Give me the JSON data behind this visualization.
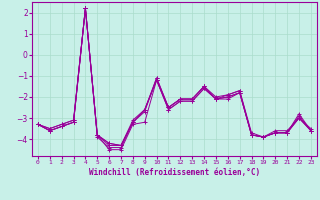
{
  "xlabel": "Windchill (Refroidissement éolien,°C)",
  "x": [
    0,
    1,
    2,
    3,
    4,
    5,
    6,
    7,
    8,
    9,
    10,
    11,
    12,
    13,
    14,
    15,
    16,
    17,
    18,
    19,
    20,
    21,
    22,
    23
  ],
  "lines": [
    [
      -3.3,
      -3.6,
      -3.4,
      -3.2,
      2.2,
      -3.8,
      -4.5,
      -4.5,
      -3.3,
      -3.2,
      -1.2,
      -2.6,
      -2.2,
      -2.2,
      -1.6,
      -2.1,
      -2.1,
      -1.8,
      -3.8,
      -3.9,
      -3.7,
      -3.7,
      -2.8,
      -3.6
    ],
    [
      -3.3,
      -3.6,
      -3.4,
      -3.2,
      2.2,
      -3.8,
      -4.3,
      -4.3,
      -3.2,
      -2.6,
      -1.2,
      -2.6,
      -2.2,
      -2.2,
      -1.6,
      -2.1,
      -2.0,
      -1.8,
      -3.8,
      -3.9,
      -3.7,
      -3.7,
      -3.0,
      -3.6
    ],
    [
      -3.3,
      -3.5,
      -3.3,
      -3.1,
      2.2,
      -3.8,
      -4.2,
      -4.3,
      -3.2,
      -2.6,
      -1.2,
      -2.5,
      -2.1,
      -2.1,
      -1.5,
      -2.1,
      -1.9,
      -1.7,
      -3.8,
      -3.9,
      -3.7,
      -3.7,
      -3.0,
      -3.6
    ],
    [
      -3.3,
      -3.5,
      -3.3,
      -3.1,
      2.2,
      -3.8,
      -4.2,
      -4.3,
      -3.1,
      -2.6,
      -1.1,
      -2.5,
      -2.1,
      -2.1,
      -1.5,
      -2.0,
      -1.9,
      -1.7,
      -3.7,
      -3.9,
      -3.6,
      -3.6,
      -3.0,
      -3.5
    ],
    [
      -3.3,
      -3.6,
      -3.4,
      -3.2,
      2.2,
      -3.9,
      -4.4,
      -4.4,
      -3.2,
      -2.7,
      -1.1,
      -2.5,
      -2.1,
      -2.1,
      -1.5,
      -2.1,
      -2.0,
      -1.8,
      -3.8,
      -3.9,
      -3.7,
      -3.7,
      -2.9,
      -3.6
    ]
  ],
  "line_color": "#990099",
  "marker": "+",
  "markersize": 3,
  "linewidth": 0.7,
  "markeredgewidth": 0.7,
  "background_color": "#c8f0e8",
  "grid_color": "#aaddcc",
  "text_color": "#990099",
  "ylim": [
    -4.8,
    2.5
  ],
  "yticks": [
    -4,
    -3,
    -2,
    -1,
    0,
    1,
    2
  ],
  "xlim": [
    -0.5,
    23.5
  ],
  "figsize": [
    3.2,
    2.0
  ],
  "dpi": 100
}
